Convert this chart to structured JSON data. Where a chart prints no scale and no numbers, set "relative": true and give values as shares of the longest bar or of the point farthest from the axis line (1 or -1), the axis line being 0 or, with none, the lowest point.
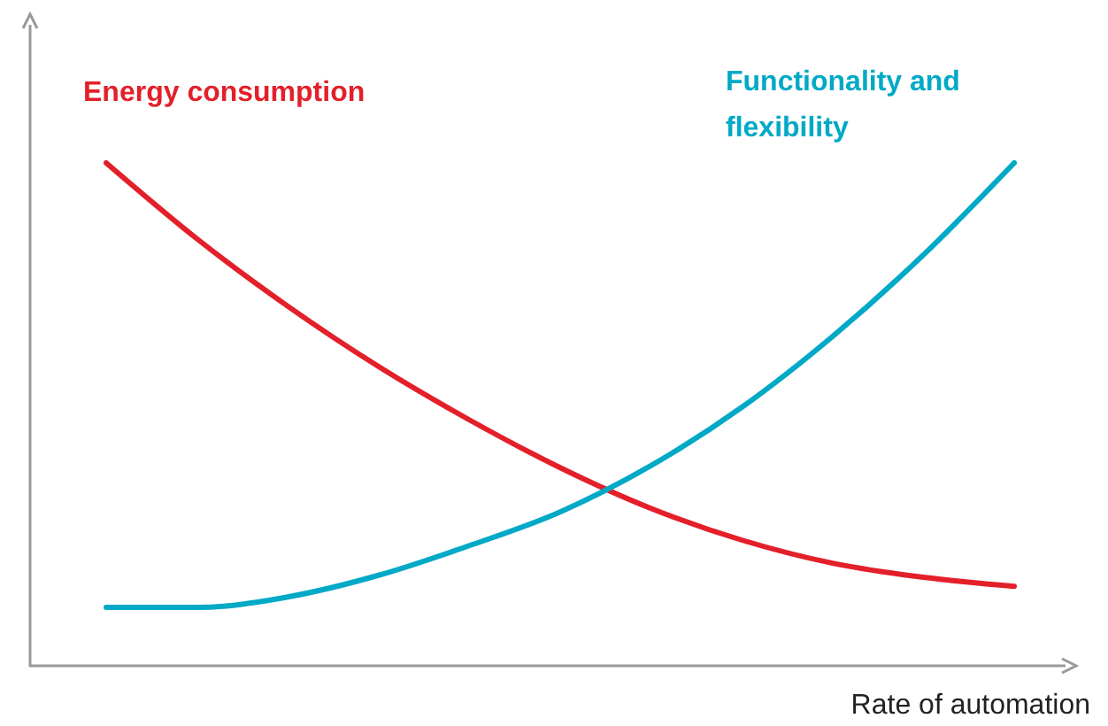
{
  "chart_data": {
    "type": "line",
    "relative": true,
    "xlabel": "Rate of automation",
    "categories": [
      null,
      null,
      null,
      null,
      null,
      null,
      null,
      null,
      null,
      null,
      null
    ],
    "series": [
      {
        "name": "Energy consumption",
        "color": "#e3202a",
        "values": [
          1,
          0.849,
          0.715,
          0.595,
          0.489,
          0.394,
          0.313,
          0.25,
          0.204,
          0.176,
          0.158
        ]
      },
      {
        "name": "Functionality and flexibility",
        "color": "#00a9c6",
        "values": [
          0.116,
          0.116,
          0.137,
          0.18,
          0.239,
          0.306,
          0.398,
          0.514,
          0.655,
          0.817,
          1
        ]
      }
    ],
    "legend": false,
    "line_style": "solid",
    "marker": "none"
  }
}
